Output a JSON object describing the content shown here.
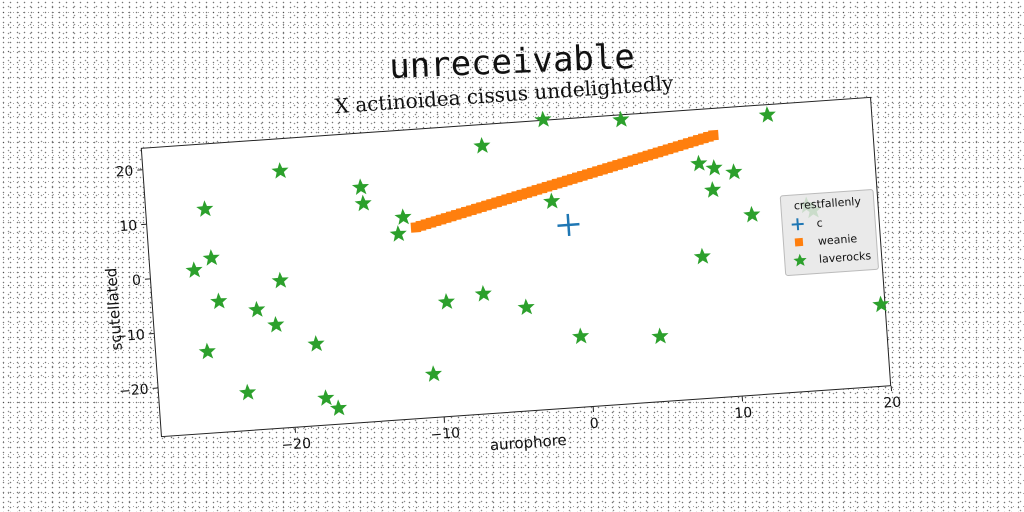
{
  "page": {
    "title": "unreceivable"
  },
  "colors": {
    "c": "#1f77b4",
    "weanie": "#ff7f0e",
    "laverocks": "#2ca02c"
  },
  "chart_data": {
    "type": "scatter",
    "title": "X actinoidea cissus undelightedly",
    "xlabel": "aurophore",
    "ylabel": "scutellated",
    "xlim": [
      -29,
      20
    ],
    "ylim": [
      -29,
      24
    ],
    "xticks": [
      -20,
      -10,
      0,
      10,
      20
    ],
    "yticks": [
      -20,
      -10,
      0,
      10,
      20
    ],
    "xtick_labels": [
      "−20",
      "−10",
      "0",
      "10",
      "20"
    ],
    "ytick_labels": [
      "−20",
      "−10",
      "0",
      "10",
      "20"
    ],
    "grid": false,
    "legend": {
      "title": "crestfallenly",
      "placement": "center-right",
      "entries": [
        "c",
        "weanie",
        "laverocks"
      ]
    },
    "series": [
      {
        "name": "c",
        "marker": "plus",
        "x": [
          -0.8
        ],
        "y": [
          4.5
        ]
      },
      {
        "name": "weanie",
        "marker": "square",
        "line_from": [
          -11,
          6
        ],
        "line_to": [
          9.3,
          19
        ],
        "count": 60
      },
      {
        "name": "laverocks",
        "marker": "star",
        "x": [
          -26,
          -25,
          -25.5,
          -24.8,
          -23,
          -22,
          -24.5,
          -20.8,
          -20.3,
          -19.8,
          -18.2,
          -17.8,
          -17,
          -14.5,
          -14.4,
          -12.2,
          -11.8,
          -10.5,
          -9.3,
          -6.8,
          -6.2,
          -4,
          -2,
          -1.8,
          -0.5,
          3.2,
          4.8,
          8,
          8.2,
          9,
          9.2,
          10.5,
          11.5,
          13,
          15.2,
          15.6,
          19.7
        ],
        "y": [
          1,
          12,
          -14,
          3,
          -22,
          -7,
          -5,
          -10,
          -2,
          18,
          -14,
          -24,
          -26,
          14,
          11,
          5,
          8,
          -21,
          -8,
          -7,
          20,
          -10,
          24,
          9,
          -16,
          23,
          -17,
          -3,
          14,
          9,
          13,
          12,
          4,
          22,
          5,
          4,
          -14
        ]
      }
    ]
  }
}
